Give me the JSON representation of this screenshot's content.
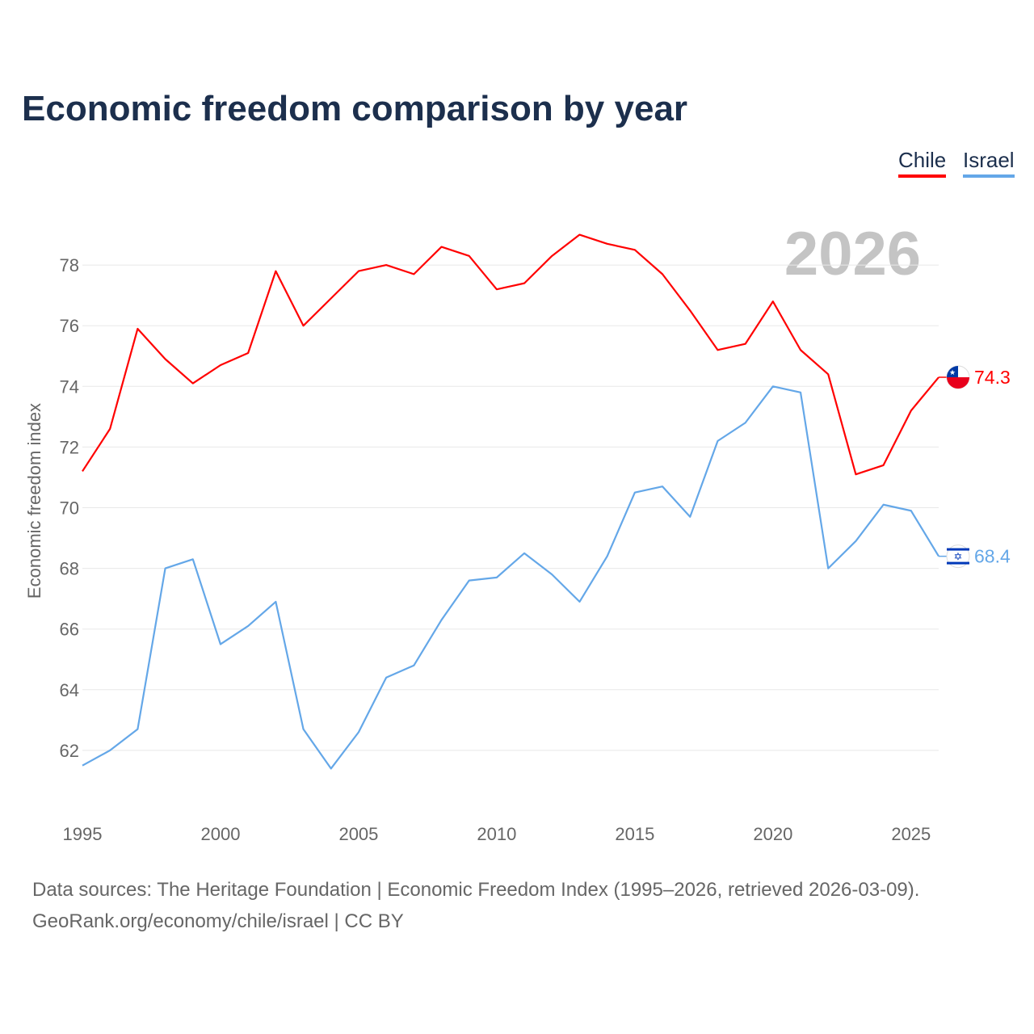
{
  "chart_data": {
    "type": "line",
    "title": "Economic freedom comparison by year",
    "xlabel": "",
    "ylabel": "Economic freedom index",
    "xlim": [
      1995,
      2026
    ],
    "ylim": [
      60,
      80
    ],
    "yticks": [
      62,
      64,
      66,
      68,
      70,
      72,
      74,
      76,
      78
    ],
    "xticks": [
      1995,
      2000,
      2005,
      2010,
      2015,
      2020,
      2025
    ],
    "grid": true,
    "legend_placement": "top-right",
    "watermark_year": "2026",
    "x": [
      1995,
      1996,
      1997,
      1998,
      1999,
      2000,
      2001,
      2002,
      2003,
      2004,
      2005,
      2006,
      2007,
      2008,
      2009,
      2010,
      2011,
      2012,
      2013,
      2014,
      2015,
      2016,
      2017,
      2018,
      2019,
      2020,
      2021,
      2022,
      2023,
      2024,
      2025,
      2026
    ],
    "series": [
      {
        "name": "Chile",
        "color": "#ff0000",
        "end_label": "74.3",
        "values": [
          71.2,
          72.6,
          75.9,
          74.9,
          74.1,
          74.7,
          75.1,
          77.8,
          76.0,
          76.9,
          77.8,
          78.0,
          77.7,
          78.6,
          78.3,
          77.2,
          77.4,
          78.3,
          79.0,
          78.7,
          78.5,
          77.7,
          76.5,
          75.2,
          75.4,
          76.8,
          75.2,
          74.4,
          71.1,
          71.4,
          73.2,
          74.3
        ]
      },
      {
        "name": "Israel",
        "color": "#64a7e8",
        "end_label": "68.4",
        "values": [
          61.5,
          62.0,
          62.7,
          68.0,
          68.3,
          65.5,
          66.1,
          66.9,
          62.7,
          61.4,
          62.6,
          64.4,
          64.8,
          66.3,
          67.6,
          67.7,
          68.5,
          67.8,
          66.9,
          68.4,
          70.5,
          70.7,
          69.7,
          72.2,
          72.8,
          74.0,
          73.8,
          68.0,
          68.9,
          70.1,
          69.9,
          68.4
        ]
      }
    ]
  },
  "footer": {
    "source": "Data sources: The Heritage Foundation | Economic Freedom Index (1995–2026, retrieved 2026-03-09).",
    "link": "GeoRank.org/economy/chile/israel | CC BY"
  }
}
